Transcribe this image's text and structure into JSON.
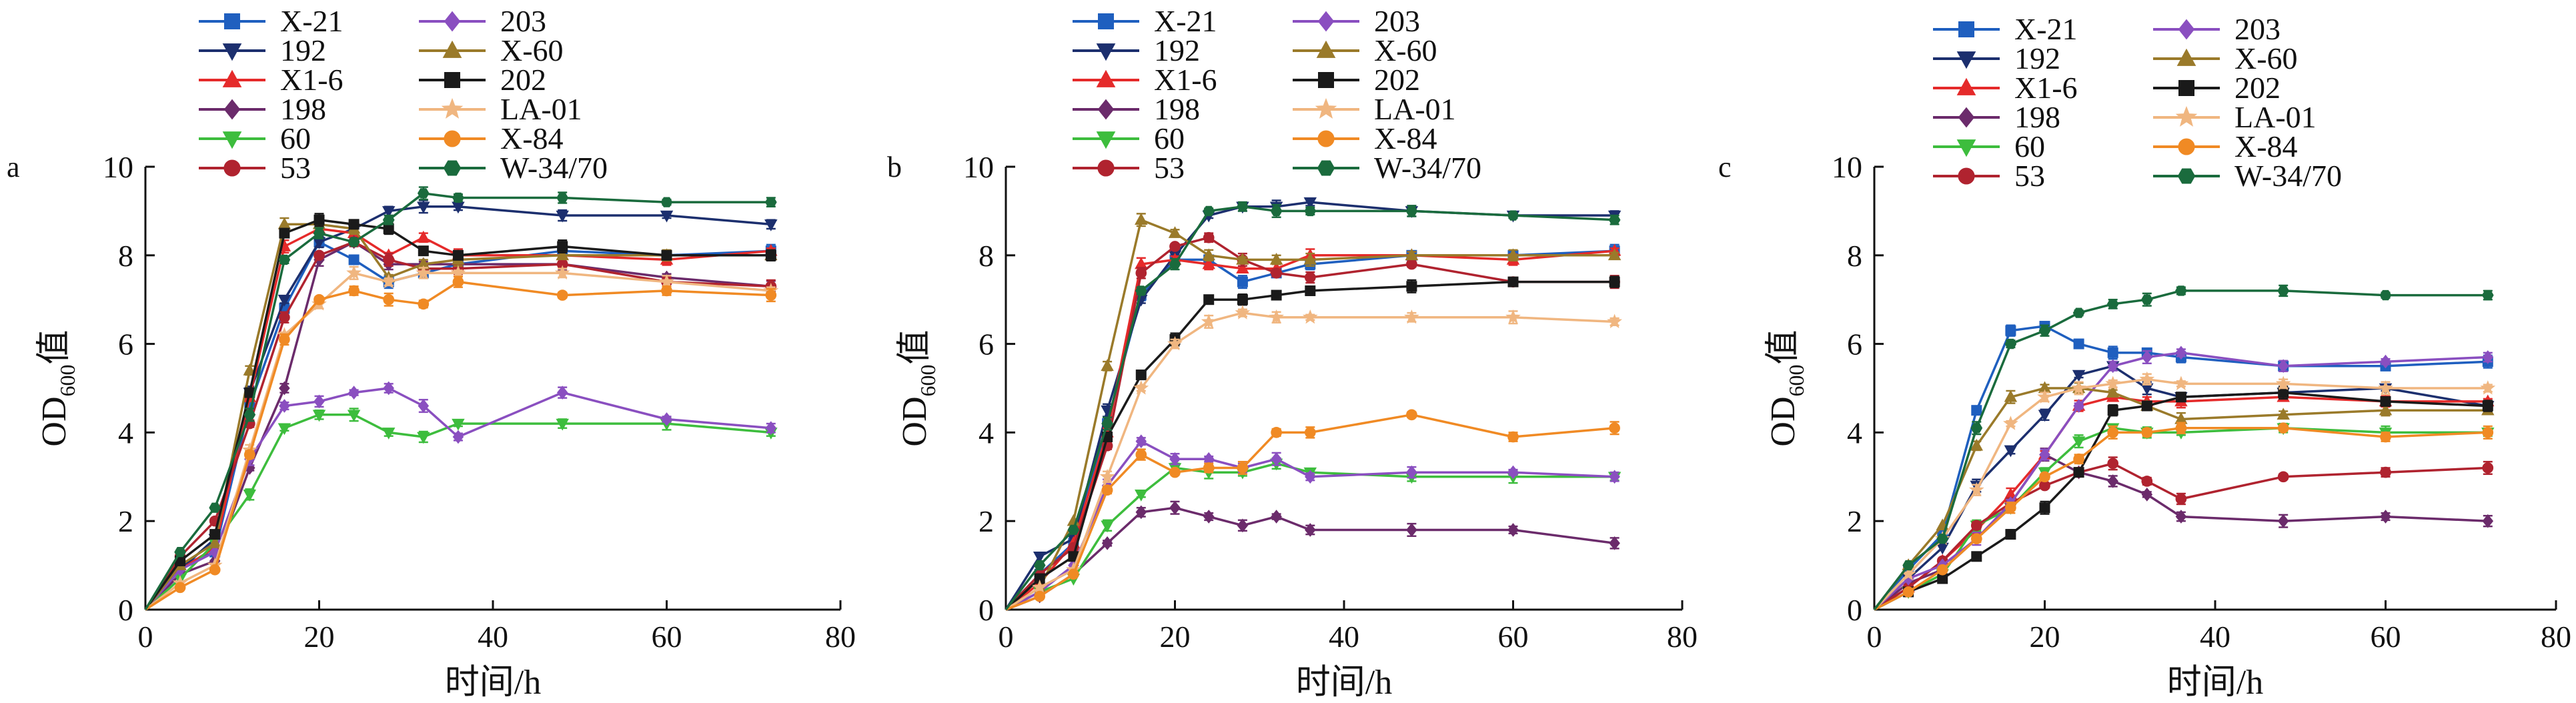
{
  "figure": {
    "panels": [
      "a",
      "b",
      "c"
    ]
  },
  "chart_data": [
    {
      "panel": "a",
      "type": "line",
      "xlabel": "时间/h",
      "ylabel_main": "OD",
      "ylabel_sub": "600",
      "ylabel_suffix": "值",
      "xlim": [
        0,
        80
      ],
      "ylim": [
        0,
        10
      ],
      "xticks": [
        0,
        20,
        40,
        60,
        80
      ],
      "yticks": [
        0,
        2,
        4,
        6,
        8,
        10
      ],
      "grid": false,
      "legend_position": "top-left, outside plot, two columns",
      "x": [
        0,
        4,
        8,
        12,
        16,
        20,
        24,
        28,
        32,
        36,
        48,
        60,
        72
      ],
      "series": [
        {
          "name": "X-21",
          "color": "#1f5fbf",
          "marker": "square",
          "values": [
            0,
            1.0,
            1.3,
            4.6,
            6.8,
            8.3,
            7.9,
            7.4,
            7.6,
            7.8,
            8.1,
            8.0,
            8.1
          ]
        },
        {
          "name": "192",
          "color": "#1c2f6e",
          "marker": "triangle-down",
          "values": [
            0,
            0.9,
            1.6,
            4.9,
            7.0,
            8.3,
            8.6,
            9.0,
            9.1,
            9.1,
            8.9,
            8.9,
            8.7
          ]
        },
        {
          "name": "X1-6",
          "color": "#e52a2a",
          "marker": "triangle-up",
          "values": [
            0,
            0.9,
            1.4,
            4.8,
            8.2,
            8.6,
            8.5,
            8.0,
            8.4,
            8.0,
            8.0,
            7.9,
            8.1
          ]
        },
        {
          "name": "198",
          "color": "#6b2b6b",
          "marker": "diamond",
          "values": [
            0,
            0.8,
            1.1,
            3.2,
            5.0,
            7.9,
            8.3,
            7.8,
            7.8,
            7.8,
            7.8,
            7.5,
            7.3
          ]
        },
        {
          "name": "60",
          "color": "#3dbd3d",
          "marker": "triangle-down",
          "values": [
            0,
            0.7,
            1.5,
            2.6,
            4.1,
            4.4,
            4.4,
            4.0,
            3.9,
            4.2,
            4.2,
            4.2,
            4.0
          ]
        },
        {
          "name": "53",
          "color": "#b0232f",
          "marker": "circle",
          "values": [
            0,
            1.2,
            2.0,
            4.2,
            6.6,
            8.0,
            8.3,
            7.9,
            7.7,
            7.7,
            7.8,
            7.4,
            7.3
          ]
        },
        {
          "name": "203",
          "color": "#8a4fc0",
          "marker": "diamond",
          "values": [
            0,
            0.9,
            1.3,
            3.4,
            4.6,
            4.7,
            4.9,
            5.0,
            4.6,
            3.9,
            4.9,
            4.3,
            4.1
          ]
        },
        {
          "name": "X-60",
          "color": "#9a7a2a",
          "marker": "triangle-up",
          "values": [
            0,
            1.0,
            1.5,
            5.4,
            8.7,
            8.7,
            8.6,
            7.5,
            7.8,
            7.9,
            8.0,
            8.0,
            8.0
          ]
        },
        {
          "name": "202",
          "color": "#1a1a1a",
          "marker": "square",
          "values": [
            0,
            1.1,
            1.7,
            4.9,
            8.5,
            8.8,
            8.7,
            8.6,
            8.1,
            8.0,
            8.2,
            8.0,
            8.0
          ]
        },
        {
          "name": "LA-01",
          "color": "#f0b680",
          "marker": "star",
          "values": [
            0,
            0.6,
            1.0,
            3.6,
            6.2,
            6.9,
            7.6,
            7.4,
            7.6,
            7.6,
            7.6,
            7.4,
            7.2
          ]
        },
        {
          "name": "X-84",
          "color": "#f08a24",
          "marker": "circle",
          "values": [
            0,
            0.5,
            0.9,
            3.5,
            6.1,
            7.0,
            7.2,
            7.0,
            6.9,
            7.4,
            7.1,
            7.2,
            7.1
          ]
        },
        {
          "name": "W-34/70",
          "color": "#1a6b3d",
          "marker": "hexagon",
          "values": [
            0,
            1.3,
            2.3,
            4.4,
            7.9,
            8.5,
            8.3,
            8.8,
            9.4,
            9.3,
            9.3,
            9.2,
            9.2
          ]
        }
      ]
    },
    {
      "panel": "b",
      "type": "line",
      "xlabel": "时间/h",
      "ylabel_main": "OD",
      "ylabel_sub": "600",
      "ylabel_suffix": "值",
      "xlim": [
        0,
        80
      ],
      "ylim": [
        0,
        10
      ],
      "xticks": [
        0,
        20,
        40,
        60,
        80
      ],
      "yticks": [
        0,
        2,
        4,
        6,
        8,
        10
      ],
      "grid": false,
      "legend_position": "top-left, outside plot, two columns",
      "x": [
        0,
        4,
        8,
        12,
        16,
        20,
        24,
        28,
        32,
        36,
        48,
        60,
        72
      ],
      "series": [
        {
          "name": "X-21",
          "color": "#1f5fbf",
          "marker": "square",
          "values": [
            0,
            0.8,
            1.5,
            4.2,
            7.1,
            7.9,
            7.9,
            7.4,
            7.6,
            7.8,
            8.0,
            8.0,
            8.1
          ]
        },
        {
          "name": "192",
          "color": "#1c2f6e",
          "marker": "triangle-down",
          "values": [
            0,
            1.2,
            1.6,
            4.5,
            7.0,
            8.0,
            8.9,
            9.1,
            9.1,
            9.2,
            9.0,
            8.9,
            8.9
          ]
        },
        {
          "name": "X1-6",
          "color": "#e52a2a",
          "marker": "triangle-up",
          "values": [
            0,
            0.6,
            1.5,
            4.0,
            7.8,
            7.9,
            7.8,
            7.7,
            7.7,
            8.0,
            8.0,
            7.9,
            8.1
          ]
        },
        {
          "name": "198",
          "color": "#6b2b6b",
          "marker": "diamond",
          "values": [
            0,
            0.3,
            0.8,
            1.5,
            2.2,
            2.3,
            2.1,
            1.9,
            2.1,
            1.8,
            1.8,
            1.8,
            1.5
          ]
        },
        {
          "name": "60",
          "color": "#3dbd3d",
          "marker": "triangle-down",
          "values": [
            0,
            0.4,
            0.7,
            1.9,
            2.6,
            3.2,
            3.1,
            3.1,
            3.3,
            3.1,
            3.0,
            3.0,
            3.0
          ]
        },
        {
          "name": "53",
          "color": "#b0232f",
          "marker": "circle",
          "values": [
            0,
            0.8,
            1.4,
            3.7,
            7.6,
            8.2,
            8.4,
            7.9,
            7.6,
            7.5,
            7.8,
            7.4,
            7.4
          ]
        },
        {
          "name": "203",
          "color": "#8a4fc0",
          "marker": "diamond",
          "values": [
            0,
            0.4,
            1.0,
            2.8,
            3.8,
            3.4,
            3.4,
            3.2,
            3.4,
            3.0,
            3.1,
            3.1,
            3.0
          ]
        },
        {
          "name": "X-60",
          "color": "#9a7a2a",
          "marker": "triangle-up",
          "values": [
            0,
            0.5,
            2.0,
            5.5,
            8.8,
            8.5,
            8.0,
            7.9,
            7.9,
            7.9,
            8.0,
            8.0,
            8.0
          ]
        },
        {
          "name": "202",
          "color": "#1a1a1a",
          "marker": "square",
          "values": [
            0,
            0.7,
            1.2,
            3.9,
            5.3,
            6.1,
            7.0,
            7.0,
            7.1,
            7.2,
            7.3,
            7.4,
            7.4
          ]
        },
        {
          "name": "LA-01",
          "color": "#f0b680",
          "marker": "star",
          "values": [
            0,
            0.5,
            0.9,
            3.0,
            5.0,
            6.0,
            6.5,
            6.7,
            6.6,
            6.6,
            6.6,
            6.6,
            6.5
          ]
        },
        {
          "name": "X-84",
          "color": "#f08a24",
          "marker": "circle",
          "values": [
            0,
            0.3,
            0.8,
            2.7,
            3.5,
            3.1,
            3.2,
            3.2,
            4.0,
            4.0,
            4.4,
            3.9,
            4.1
          ]
        },
        {
          "name": "W-34/70",
          "color": "#1a6b3d",
          "marker": "hexagon",
          "values": [
            0,
            1.0,
            1.8,
            4.2,
            7.2,
            7.8,
            9.0,
            9.1,
            9.0,
            9.0,
            9.0,
            8.9,
            8.8
          ]
        }
      ]
    },
    {
      "panel": "c",
      "type": "line",
      "xlabel": "时间/h",
      "ylabel_main": "OD",
      "ylabel_sub": "600",
      "ylabel_suffix": "值",
      "xlim": [
        0,
        80
      ],
      "ylim": [
        0,
        10
      ],
      "xticks": [
        0,
        20,
        40,
        60,
        80
      ],
      "yticks": [
        0,
        2,
        4,
        6,
        8,
        10
      ],
      "grid": false,
      "legend_position": "top-left, outside plot, two columns",
      "x": [
        0,
        4,
        8,
        12,
        16,
        20,
        24,
        28,
        32,
        36,
        48,
        60,
        72
      ],
      "series": [
        {
          "name": "X-21",
          "color": "#1f5fbf",
          "marker": "square",
          "values": [
            0,
            0.9,
            1.7,
            4.5,
            6.3,
            6.4,
            6.0,
            5.8,
            5.8,
            5.7,
            5.5,
            5.5,
            5.6
          ]
        },
        {
          "name": "192",
          "color": "#1c2f6e",
          "marker": "triangle-down",
          "values": [
            0,
            0.7,
            1.4,
            2.8,
            3.6,
            4.4,
            5.3,
            5.5,
            5.0,
            4.8,
            4.9,
            5.0,
            4.6
          ]
        },
        {
          "name": "X1-6",
          "color": "#e52a2a",
          "marker": "triangle-up",
          "values": [
            0,
            0.5,
            1.1,
            1.8,
            2.6,
            3.5,
            4.6,
            4.8,
            4.7,
            4.7,
            4.8,
            4.7,
            4.7
          ]
        },
        {
          "name": "198",
          "color": "#6b2b6b",
          "marker": "diamond",
          "values": [
            0,
            0.6,
            0.9,
            1.6,
            2.4,
            3.5,
            3.1,
            2.9,
            2.6,
            2.1,
            2.0,
            2.1,
            2.0
          ]
        },
        {
          "name": "60",
          "color": "#3dbd3d",
          "marker": "triangle-down",
          "values": [
            0,
            0.4,
            0.8,
            1.9,
            2.3,
            3.1,
            3.8,
            4.1,
            4.0,
            4.0,
            4.1,
            4.0,
            4.0
          ]
        },
        {
          "name": "53",
          "color": "#b0232f",
          "marker": "circle",
          "values": [
            0,
            0.5,
            1.1,
            1.9,
            2.4,
            2.8,
            3.1,
            3.3,
            2.9,
            2.5,
            3.0,
            3.1,
            3.2
          ]
        },
        {
          "name": "203",
          "color": "#8a4fc0",
          "marker": "diamond",
          "values": [
            0,
            0.7,
            1.0,
            1.6,
            2.4,
            3.5,
            4.6,
            5.5,
            5.7,
            5.8,
            5.5,
            5.6,
            5.7
          ]
        },
        {
          "name": "X-60",
          "color": "#9a7a2a",
          "marker": "triangle-up",
          "values": [
            0,
            1.0,
            1.9,
            3.7,
            4.8,
            5.0,
            5.0,
            4.9,
            4.6,
            4.3,
            4.4,
            4.5,
            4.5
          ]
        },
        {
          "name": "202",
          "color": "#1a1a1a",
          "marker": "square",
          "values": [
            0,
            0.4,
            0.7,
            1.2,
            1.7,
            2.3,
            3.1,
            4.5,
            4.6,
            4.8,
            4.9,
            4.7,
            4.6
          ]
        },
        {
          "name": "LA-01",
          "color": "#f0b680",
          "marker": "star",
          "values": [
            0,
            0.8,
            1.6,
            2.7,
            4.2,
            4.8,
            5.0,
            5.1,
            5.2,
            5.1,
            5.1,
            5.0,
            5.0
          ]
        },
        {
          "name": "X-84",
          "color": "#f08a24",
          "marker": "circle",
          "values": [
            0,
            0.4,
            0.9,
            1.6,
            2.3,
            3.0,
            3.4,
            4.0,
            4.0,
            4.1,
            4.1,
            3.9,
            4.0
          ]
        },
        {
          "name": "W-34/70",
          "color": "#1a6b3d",
          "marker": "hexagon",
          "values": [
            0,
            1.0,
            1.6,
            4.1,
            6.0,
            6.3,
            6.7,
            6.9,
            7.0,
            7.2,
            7.2,
            7.1,
            7.1
          ]
        }
      ]
    }
  ]
}
